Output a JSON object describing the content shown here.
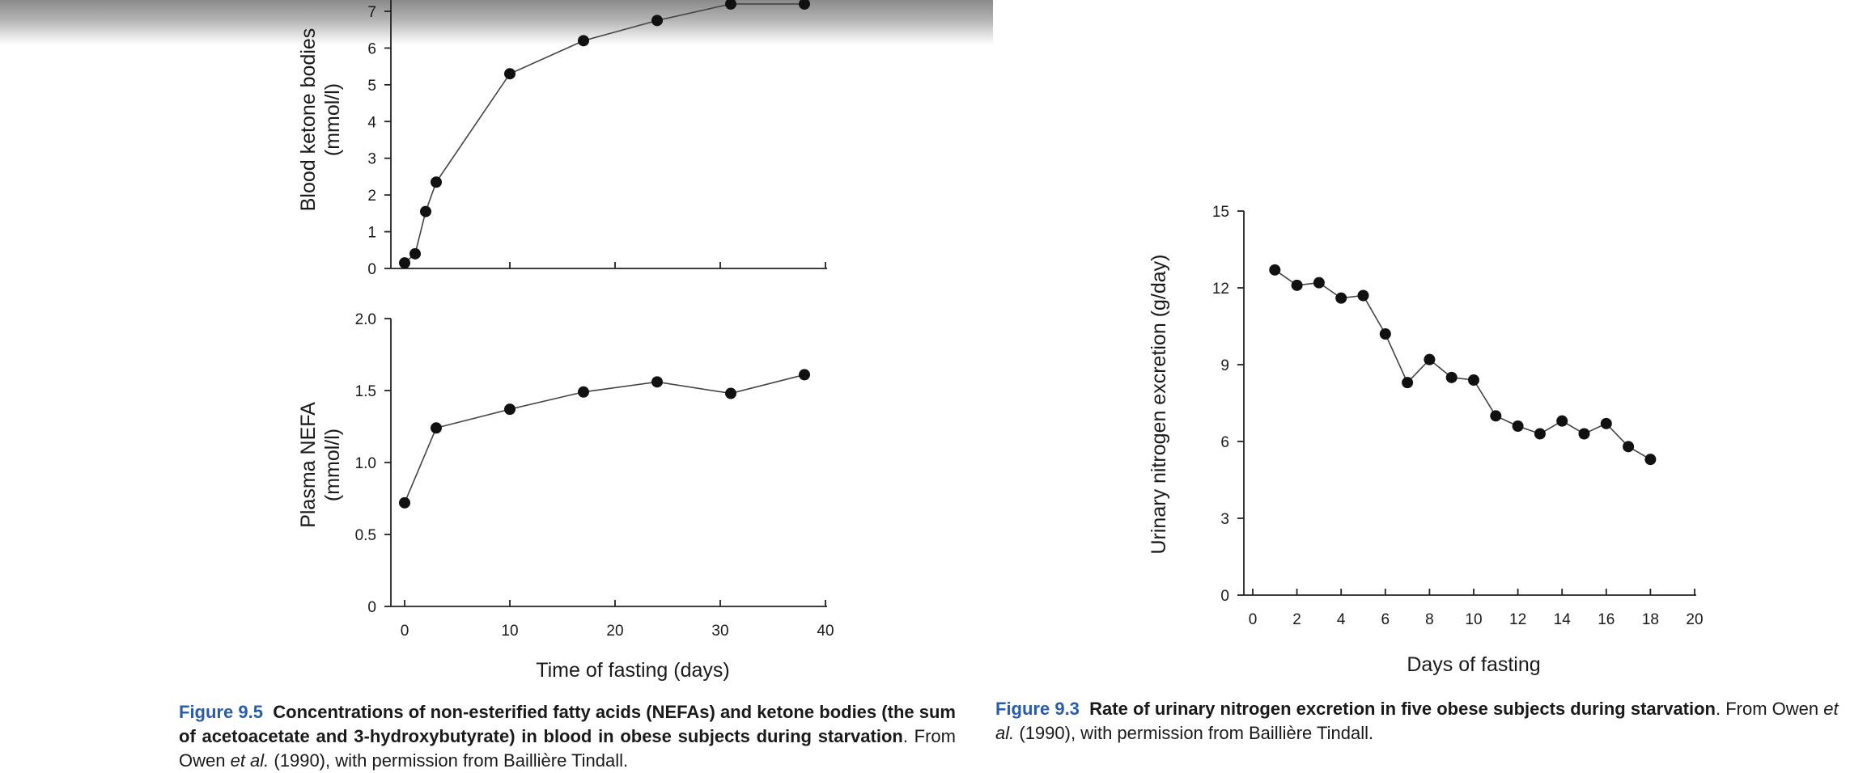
{
  "chart_data": [
    {
      "type": "line",
      "ylabel_lines": [
        "Blood ketone bodies",
        "(mmol/l)"
      ],
      "x": [
        0,
        1,
        2,
        3,
        10,
        17,
        24,
        31,
        38
      ],
      "values": [
        0.15,
        0.4,
        1.55,
        2.35,
        5.3,
        6.2,
        6.75,
        7.2,
        7.2
      ],
      "xlim": [
        0,
        40
      ],
      "ylim": [
        0,
        7
      ],
      "yticks": [
        0,
        1,
        2,
        3,
        4,
        5,
        6,
        7
      ],
      "ytick_labels": [
        "0",
        "1",
        "2",
        "3",
        "4",
        "5",
        "6",
        "7"
      ]
    },
    {
      "type": "line",
      "ylabel_lines": [
        "Plasma NEFA",
        "(mmol/l)"
      ],
      "xlabel": "Time of fasting (days)",
      "x": [
        0,
        3,
        10,
        17,
        24,
        31,
        38
      ],
      "values": [
        0.72,
        1.24,
        1.37,
        1.49,
        1.56,
        1.48,
        1.61
      ],
      "xlim": [
        0,
        40
      ],
      "ylim": [
        0,
        2.0
      ],
      "xticks": [
        0,
        10,
        20,
        30,
        40
      ],
      "xtick_labels": [
        "0",
        "10",
        "20",
        "30",
        "40"
      ],
      "yticks": [
        0,
        0.5,
        1.0,
        1.5,
        2.0
      ],
      "ytick_labels": [
        "0",
        "0.5",
        "1.0",
        "1.5",
        "2.0"
      ]
    },
    {
      "type": "line",
      "ylabel": "Urinary nitrogen excretion (g/day)",
      "xlabel": "Days of fasting",
      "x": [
        1,
        2,
        3,
        4,
        5,
        6,
        7,
        8,
        9,
        10,
        11,
        12,
        13,
        14,
        15,
        16,
        17,
        18
      ],
      "values": [
        12.7,
        12.1,
        12.2,
        11.6,
        11.7,
        10.2,
        8.3,
        9.2,
        8.5,
        8.4,
        7.0,
        6.6,
        6.3,
        6.8,
        6.3,
        6.7,
        5.8,
        5.3
      ],
      "xlim": [
        0,
        20
      ],
      "ylim": [
        0,
        15
      ],
      "xticks": [
        0,
        2,
        4,
        6,
        8,
        10,
        12,
        14,
        16,
        18,
        20
      ],
      "xtick_labels": [
        "0",
        "2",
        "4",
        "6",
        "8",
        "10",
        "12",
        "14",
        "16",
        "18",
        "20"
      ],
      "yticks": [
        0,
        3,
        6,
        9,
        12,
        15
      ],
      "ytick_labels": [
        "0",
        "3",
        "6",
        "9",
        "12",
        "15"
      ]
    }
  ],
  "captions": {
    "left": {
      "fignum": "Figure 9.5",
      "bold_text": "Concentrations of non-esterified fatty acids (NEFAs) and ketone bodies (the sum of acetoacetate and 3-hydroxybutyrate) in blood in obese subjects during starvation",
      "source_pre": ". From Owen ",
      "source_etal": "et al.",
      "source_post": " (1990), with permission from Baillière Tindall."
    },
    "right": {
      "fignum": "Figure 9.3",
      "bold_text": "Rate of urinary nitrogen excretion in five obese subjects during starvation",
      "source_pre": ". From Owen ",
      "source_etal": "et al.",
      "source_post": " (1990), with permission from Baillière Tindall."
    }
  }
}
